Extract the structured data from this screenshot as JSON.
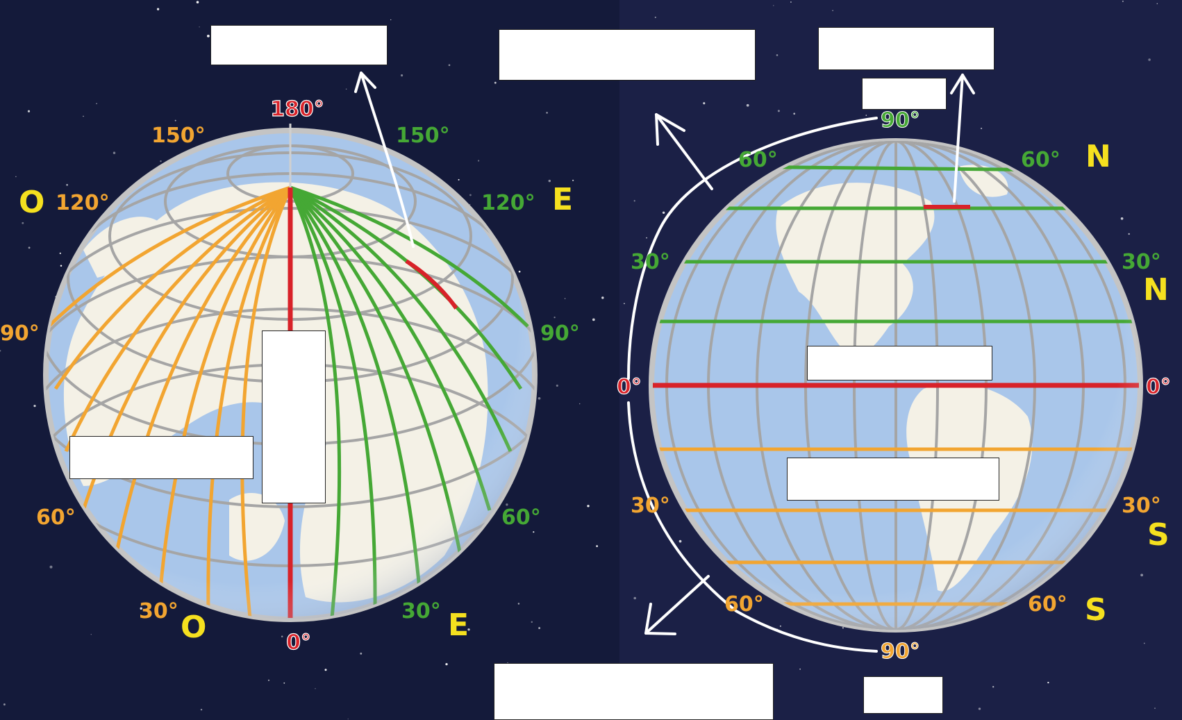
{
  "colors": {
    "space_left": "#141a3a",
    "space_right": "#1b2046",
    "ocean": "#a9c6ea",
    "land": "#f4f1e6",
    "grid": "#a5a5a5",
    "west": "#f2a531",
    "east": "#45a835",
    "primary": "#d82229",
    "dir_letters": "#f5e01f",
    "arrow": "#ffffff"
  },
  "left_globe": {
    "prime_label": "180°",
    "bottom_label": "0°",
    "west_letter": "O",
    "east_letter": "E",
    "west_labels": [
      "150°",
      "120°",
      "90°",
      "60°",
      "30°"
    ],
    "east_labels": [
      "150°",
      "120°",
      "90°",
      "60°",
      "30°"
    ]
  },
  "right_globe": {
    "north_letter": "N",
    "south_letter": "S",
    "equator_label": "0°",
    "pole_label": "90°",
    "north_labels": [
      "60°",
      "30°"
    ],
    "south_labels": [
      "30°",
      "60°"
    ]
  },
  "answer_boxes": [
    {
      "id": "box-top-left",
      "value": ""
    },
    {
      "id": "box-top-center",
      "value": ""
    },
    {
      "id": "box-top-right",
      "value": ""
    },
    {
      "id": "box-top-right-small",
      "value": ""
    },
    {
      "id": "box-left-globe-horizontal",
      "value": ""
    },
    {
      "id": "box-left-globe-vertical",
      "value": ""
    },
    {
      "id": "box-right-globe-upper",
      "value": ""
    },
    {
      "id": "box-right-globe-lower",
      "value": ""
    },
    {
      "id": "box-bottom-center",
      "value": ""
    },
    {
      "id": "box-bottom-right-small",
      "value": ""
    }
  ]
}
